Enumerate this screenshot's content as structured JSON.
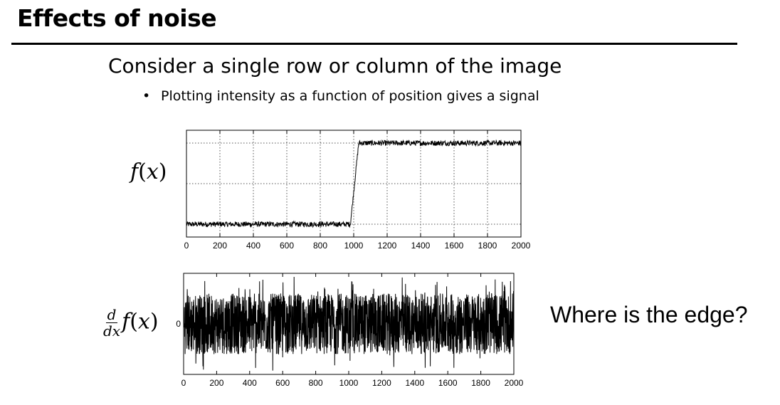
{
  "slide": {
    "title": "Effects of noise",
    "heading": "Consider a single row or column of the image",
    "bullet": "Plotting intensity as a function of position gives a signal",
    "question": "Where is the edge?"
  },
  "chart_data": [
    {
      "type": "line",
      "ylabel": "f(x)",
      "xlim": [
        0,
        2000
      ],
      "ylim": [
        0,
        1
      ],
      "xticks": [
        0,
        200,
        400,
        600,
        800,
        1000,
        1200,
        1400,
        1600,
        1800,
        2000
      ],
      "grid": true,
      "signal": {
        "low": 0.12,
        "high": 0.88,
        "step_start": 980,
        "step_end": 1030,
        "noise_amplitude": 0.025
      }
    },
    {
      "type": "line",
      "ylabel": "d/dx f(x)",
      "xlim": [
        0,
        2000
      ],
      "ylim": [
        -1,
        1
      ],
      "xticks": [
        0,
        200,
        400,
        600,
        800,
        1000,
        1200,
        1400,
        1600,
        1800,
        2000
      ],
      "ytick_labels": [
        "0"
      ],
      "grid": false,
      "signal": {
        "mean": 0,
        "noise_amplitude": 0.6,
        "peak_amplitude": 0.95
      }
    }
  ]
}
